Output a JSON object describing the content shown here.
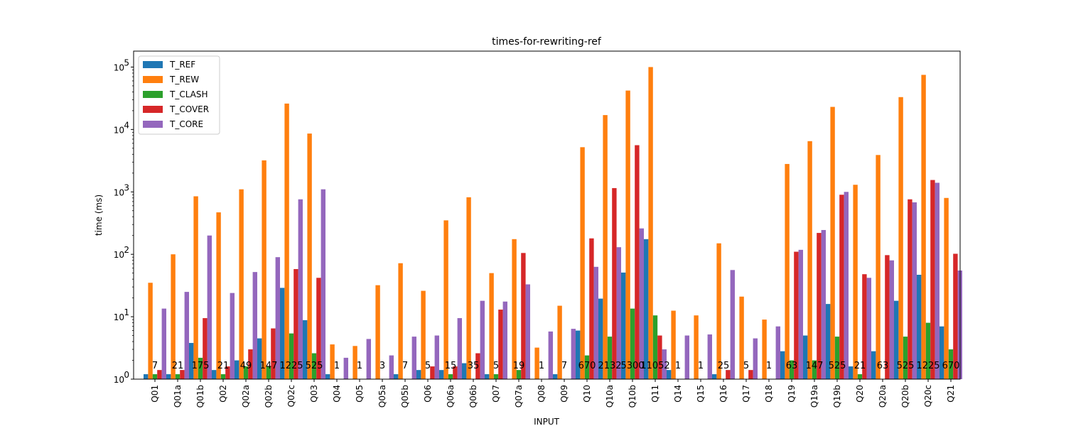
{
  "chart_data": {
    "type": "bar",
    "title": "times-for-rewriting-ref",
    "xlabel": "INPUT",
    "ylabel": "time (ms)",
    "yscale": "log",
    "ylim": [
      1,
      180000
    ],
    "y_ticks": [
      {
        "value": 1,
        "base": "10",
        "exp": "0"
      },
      {
        "value": 10,
        "base": "10",
        "exp": "1"
      },
      {
        "value": 100,
        "base": "10",
        "exp": "2"
      },
      {
        "value": 1000,
        "base": "10",
        "exp": "3"
      },
      {
        "value": 10000,
        "base": "10",
        "exp": "4"
      },
      {
        "value": 100000,
        "base": "10",
        "exp": "5"
      }
    ],
    "grid": false,
    "legend_position": "top-left",
    "categories": [
      "Q01",
      "Q01a",
      "Q01b",
      "Q02",
      "Q02a",
      "Q02b",
      "Q02c",
      "Q03",
      "Q04",
      "Q05",
      "Q05a",
      "Q05b",
      "Q06",
      "Q06a",
      "Q06b",
      "Q07",
      "Q07a",
      "Q08",
      "Q09",
      "Q10",
      "Q10a",
      "Q10b",
      "Q11",
      "Q14",
      "Q15",
      "Q16",
      "Q17",
      "Q18",
      "Q19",
      "Q19a",
      "Q19b",
      "Q20",
      "Q20a",
      "Q20b",
      "Q20c",
      "Q21"
    ],
    "series": [
      {
        "name": "T_REF",
        "color": "#1f77b4",
        "values": [
          1.2,
          1.2,
          3.8,
          1.4,
          2.0,
          4.5,
          29,
          8.8,
          1.2,
          1,
          1,
          1.2,
          1.4,
          1.4,
          1.8,
          1.2,
          1,
          1,
          1.2,
          6,
          19.5,
          51,
          175,
          1.4,
          1,
          1.2,
          1,
          1,
          2.8,
          5,
          16,
          1.6,
          2.8,
          18,
          47,
          7
        ]
      },
      {
        "name": "T_REW",
        "color": "#ff7f0e",
        "values": [
          35,
          100,
          850,
          470,
          1100,
          3200,
          26000,
          8600,
          3.6,
          3.4,
          32,
          72,
          26,
          350,
          820,
          50,
          175,
          3.2,
          15,
          5200,
          17000,
          42000,
          100000,
          12.5,
          10.5,
          150,
          21,
          9,
          2800,
          6500,
          23000,
          1300,
          3900,
          33000,
          75000,
          800
        ]
      },
      {
        "name": "T_CLASH",
        "color": "#2ca02c",
        "values": [
          1.2,
          1.2,
          2.2,
          1.2,
          1.6,
          1.6,
          5.4,
          2.6,
          1,
          1,
          1,
          1,
          1,
          1.2,
          1,
          1.2,
          1.4,
          1,
          1,
          2.4,
          4.8,
          13.5,
          10.5,
          1,
          1,
          1,
          1,
          1,
          2.0,
          2.0,
          4.8,
          1.2,
          1,
          4.8,
          8,
          3
        ]
      },
      {
        "name": "T_COVER",
        "color": "#d62728",
        "values": [
          1.4,
          1.4,
          9.5,
          1.6,
          3.0,
          6.5,
          58,
          42,
          1,
          1,
          1,
          1,
          1.6,
          1.6,
          2.6,
          13,
          105,
          1,
          1,
          180,
          1150,
          5600,
          5,
          1,
          1,
          1.4,
          1.4,
          1,
          110,
          220,
          900,
          48,
          97,
          760,
          1550,
          102
        ]
      },
      {
        "name": "T_CORE",
        "color": "#9467bd",
        "values": [
          13.5,
          25,
          200,
          24,
          52,
          90,
          760,
          1100,
          2.2,
          4.4,
          2.4,
          4.8,
          5,
          9.5,
          18,
          17.5,
          33,
          5.8,
          6.4,
          63,
          130,
          260,
          3,
          5,
          5.2,
          56,
          4.5,
          7,
          118,
          245,
          1000,
          42,
          80,
          680,
          1400,
          55
        ]
      }
    ],
    "bar_labels": [
      "7",
      "21",
      "175",
      "21",
      "49",
      "147",
      "1225",
      "525",
      "1",
      "1",
      "3",
      "7",
      "5",
      "15",
      "35",
      "5",
      "19",
      "1",
      "7",
      "670",
      "2132",
      "5300",
      "11052",
      "1",
      "1",
      "25",
      "5",
      "1",
      "63",
      "147",
      "525",
      "21",
      "63",
      "525",
      "1225",
      "670"
    ]
  }
}
